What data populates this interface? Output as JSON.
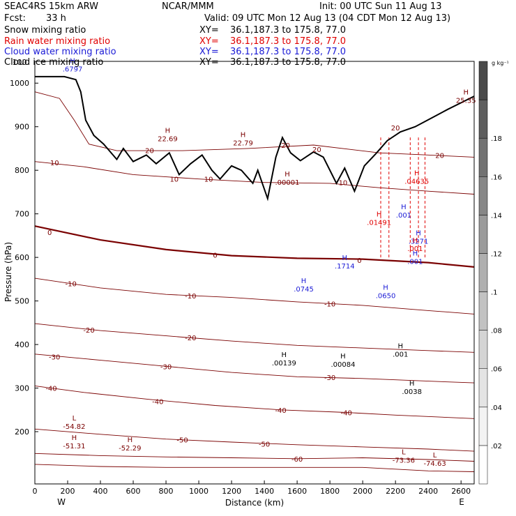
{
  "header": {
    "model": "SEAC4RS 15km ARW",
    "center": "NCAR/MMM",
    "init": "Init: 00 UTC Sun 11 Aug 13",
    "fcst_label": "Fcst:",
    "fcst_value": "33 h",
    "valid": "Valid: 09 UTC Mon 12 Aug 13 (04 CDT Mon 12 Aug 13)"
  },
  "fields": [
    {
      "name": "Snow mixing ratio",
      "xy_label": "XY=",
      "xy": "36.1,187.3 to 175.8, 77.0",
      "color": "#000000"
    },
    {
      "name": "Rain water mixing ratio",
      "xy_label": "XY=",
      "xy": "36.1,187.3 to 175.8, 77.0",
      "color": "#e00000"
    },
    {
      "name": "Cloud water mixing ratio",
      "xy_label": "XY=",
      "xy": "36.1,187.3 to 175.8, 77.0",
      "color": "#1a1ad6"
    },
    {
      "name": "Cloud ice mixing ratio",
      "xy_label": "XY=",
      "xy": "36.1,187.3 to 175.8, 77.0",
      "color": "#000000"
    }
  ],
  "chart_data": {
    "type": "line",
    "xlabel": "Distance (km)",
    "ylabel": "Pressure (hPa)",
    "xlim": [
      0,
      2680
    ],
    "ylim": [
      1050,
      80
    ],
    "x_ticks": [
      0,
      200,
      400,
      600,
      800,
      1000,
      1200,
      1400,
      1600,
      1800,
      2000,
      2200,
      2400,
      2600
    ],
    "y_ticks": [
      200,
      300,
      400,
      500,
      600,
      700,
      800,
      900,
      1000
    ],
    "y_top_label": "100",
    "endpoints": {
      "left": "W",
      "right": "E"
    },
    "colorbar": {
      "unit": "g kg⁻¹",
      "ticks": [
        ".02",
        ".04",
        ".06",
        ".08",
        ".1",
        ".12",
        ".14",
        ".16",
        ".18"
      ],
      "colors": [
        "#ffffff",
        "#f3f3f3",
        "#e4e4e4",
        "#d4d4d4",
        "#c2c2c2",
        "#afafaf",
        "#9b9b9b",
        "#878787",
        "#727272",
        "#5e5e5e",
        "#4a4a4a"
      ]
    },
    "temperature_isotherms": [
      {
        "label": "-70",
        "p": [
          [
            0,
            125
          ],
          [
            400,
            120
          ],
          [
            800,
            118
          ],
          [
            1200,
            118
          ],
          [
            1600,
            118
          ],
          [
            2000,
            118
          ],
          [
            2400,
            110
          ],
          [
            2680,
            108
          ]
        ]
      },
      {
        "label": "-60",
        "p": [
          [
            0,
            150
          ],
          [
            400,
            145
          ],
          [
            800,
            142
          ],
          [
            1200,
            140
          ],
          [
            1600,
            138
          ],
          [
            2000,
            140
          ],
          [
            2400,
            136
          ],
          [
            2680,
            132
          ]
        ]
      },
      {
        "label": "-50",
        "p": [
          [
            0,
            206
          ],
          [
            400,
            194
          ],
          [
            800,
            183
          ],
          [
            1200,
            176
          ],
          [
            1600,
            170
          ],
          [
            2000,
            165
          ],
          [
            2400,
            160
          ],
          [
            2680,
            155
          ]
        ]
      },
      {
        "label": "-40",
        "p": [
          [
            0,
            305
          ],
          [
            300,
            290
          ],
          [
            700,
            274
          ],
          [
            1100,
            260
          ],
          [
            1500,
            250
          ],
          [
            1900,
            244
          ],
          [
            2200,
            238
          ],
          [
            2680,
            230
          ]
        ]
      },
      {
        "label": "-30",
        "p": [
          [
            0,
            378
          ],
          [
            400,
            364
          ],
          [
            800,
            350
          ],
          [
            1200,
            336
          ],
          [
            1600,
            326
          ],
          [
            2000,
            322
          ],
          [
            2400,
            316
          ],
          [
            2680,
            312
          ]
        ]
      },
      {
        "label": "-20",
        "p": [
          [
            0,
            448
          ],
          [
            400,
            432
          ],
          [
            800,
            420
          ],
          [
            1200,
            408
          ],
          [
            1600,
            398
          ],
          [
            2000,
            392
          ],
          [
            2400,
            386
          ],
          [
            2680,
            382
          ]
        ]
      },
      {
        "label": "-10",
        "p": [
          [
            0,
            552
          ],
          [
            400,
            530
          ],
          [
            800,
            515
          ],
          [
            1200,
            508
          ],
          [
            1600,
            498
          ],
          [
            2000,
            490
          ],
          [
            2400,
            478
          ],
          [
            2680,
            470
          ]
        ]
      },
      {
        "label": "0",
        "p": [
          [
            0,
            672
          ],
          [
            400,
            640
          ],
          [
            800,
            618
          ],
          [
            1200,
            604
          ],
          [
            1600,
            598
          ],
          [
            2000,
            596
          ],
          [
            2400,
            588
          ],
          [
            2680,
            578
          ]
        ],
        "bold": true
      },
      {
        "label": "10",
        "p": [
          [
            0,
            820
          ],
          [
            300,
            808
          ],
          [
            600,
            790
          ],
          [
            1000,
            780
          ],
          [
            1400,
            772
          ],
          [
            1800,
            770
          ],
          [
            2100,
            760
          ],
          [
            2400,
            752
          ],
          [
            2680,
            745
          ]
        ]
      },
      {
        "label": "20",
        "p": [
          [
            0,
            980
          ],
          [
            150,
            965
          ],
          [
            240,
            915
          ],
          [
            330,
            860
          ],
          [
            500,
            845
          ],
          [
            900,
            845
          ],
          [
            1300,
            850
          ],
          [
            1700,
            858
          ],
          [
            2100,
            840
          ],
          [
            2400,
            835
          ],
          [
            2680,
            830
          ]
        ]
      }
    ],
    "terrain": [
      [
        0,
        1015
      ],
      [
        180,
        1015
      ],
      [
        250,
        1008
      ],
      [
        280,
        980
      ],
      [
        310,
        915
      ],
      [
        360,
        880
      ],
      [
        420,
        860
      ],
      [
        500,
        825
      ],
      [
        540,
        850
      ],
      [
        600,
        820
      ],
      [
        680,
        835
      ],
      [
        740,
        815
      ],
      [
        820,
        840
      ],
      [
        880,
        790
      ],
      [
        950,
        815
      ],
      [
        1020,
        835
      ],
      [
        1080,
        800
      ],
      [
        1130,
        780
      ],
      [
        1200,
        810
      ],
      [
        1260,
        800
      ],
      [
        1330,
        770
      ],
      [
        1360,
        800
      ],
      [
        1420,
        735
      ],
      [
        1470,
        830
      ],
      [
        1510,
        875
      ],
      [
        1560,
        840
      ],
      [
        1620,
        822
      ],
      [
        1700,
        842
      ],
      [
        1760,
        830
      ],
      [
        1840,
        770
      ],
      [
        1890,
        805
      ],
      [
        1950,
        752
      ],
      [
        2010,
        810
      ],
      [
        2080,
        838
      ],
      [
        2150,
        868
      ],
      [
        2230,
        888
      ],
      [
        2320,
        900
      ],
      [
        2420,
        920
      ],
      [
        2520,
        940
      ],
      [
        2600,
        955
      ],
      [
        2680,
        970
      ]
    ],
    "extrema": [
      {
        "kind": "L",
        "value": "-73.36",
        "x": 2250,
        "p": 132,
        "color": "#7a0000"
      },
      {
        "kind": "L",
        "value": "-74.63",
        "x": 2440,
        "p": 125,
        "color": "#7a0000"
      },
      {
        "kind": "H",
        "value": "-51.31",
        "x": 240,
        "p": 165,
        "color": "#7a0000"
      },
      {
        "kind": "H",
        "value": "-52.29",
        "x": 580,
        "p": 160,
        "color": "#7a0000"
      },
      {
        "kind": "L",
        "value": "-54.82",
        "x": 240,
        "p": 210,
        "color": "#7a0000"
      },
      {
        "kind": "H",
        "value": ".00139",
        "x": 1520,
        "p": 355,
        "color": "#000000"
      },
      {
        "kind": "H",
        "value": ".00084",
        "x": 1880,
        "p": 352,
        "color": "#000000"
      },
      {
        "kind": "H",
        "value": ".0038",
        "x": 2300,
        "p": 290,
        "color": "#000000"
      },
      {
        "kind": "H",
        "value": ".001",
        "x": 2230,
        "p": 375,
        "color": "#000000"
      },
      {
        "kind": "H",
        "value": ".0745",
        "x": 1640,
        "p": 525,
        "color": "#1a1ad6"
      },
      {
        "kind": "H",
        "value": ".0650",
        "x": 2140,
        "p": 510,
        "color": "#1a1ad6"
      },
      {
        "kind": "H",
        "value": ".1714",
        "x": 1890,
        "p": 578,
        "color": "#1a1ad6"
      },
      {
        "kind": "H",
        "value": ".001",
        "x": 2320,
        "p": 588,
        "color": "#1a1ad6"
      },
      {
        "kind": "H",
        "value": ".3271",
        "x": 2340,
        "p": 635,
        "color": "#1a1ad6"
      },
      {
        "kind": "H",
        "value": ".001",
        "x": 2250,
        "p": 695,
        "color": "#1a1ad6"
      },
      {
        "kind": "H",
        "value": ".001",
        "x": 2320,
        "p": 618,
        "color": "#e00000"
      },
      {
        "kind": "H",
        "value": ".01491",
        "x": 2100,
        "p": 678,
        "color": "#e00000"
      },
      {
        "kind": "H",
        "value": ".04635",
        "x": 2330,
        "p": 772,
        "color": "#e00000"
      },
      {
        "kind": "H",
        "value": ".00001",
        "x": 1540,
        "p": 770,
        "color": "#7a0000"
      },
      {
        "kind": "H",
        "value": "22.69",
        "x": 810,
        "p": 870,
        "color": "#7a0000"
      },
      {
        "kind": "H",
        "value": "22.79",
        "x": 1270,
        "p": 860,
        "color": "#7a0000"
      },
      {
        "kind": "H",
        "value": "25.35",
        "x": 2630,
        "p": 958,
        "color": "#7a0000"
      },
      {
        "kind": "H",
        "value": ".6797",
        "x": 230,
        "p": 1030,
        "color": "#1a1ad6"
      }
    ],
    "contour_labels": [
      {
        "text": "-60",
        "x": 1600,
        "p": 138
      },
      {
        "text": "-50",
        "x": 1400,
        "p": 172
      },
      {
        "text": "-50",
        "x": 900,
        "p": 182
      },
      {
        "text": "-40",
        "x": 1500,
        "p": 250
      },
      {
        "text": "-40",
        "x": 1900,
        "p": 244
      },
      {
        "text": "-40",
        "x": 750,
        "p": 270
      },
      {
        "text": "-40",
        "x": 100,
        "p": 300
      },
      {
        "text": "-30",
        "x": 1800,
        "p": 325
      },
      {
        "text": "-30",
        "x": 800,
        "p": 350
      },
      {
        "text": "-30",
        "x": 120,
        "p": 372
      },
      {
        "text": "-20",
        "x": 950,
        "p": 416
      },
      {
        "text": "-20",
        "x": 330,
        "p": 434
      },
      {
        "text": "-10",
        "x": 1800,
        "p": 494
      },
      {
        "text": "-10",
        "x": 950,
        "p": 512
      },
      {
        "text": "-10",
        "x": 220,
        "p": 540
      },
      {
        "text": "0",
        "x": 1100,
        "p": 606
      },
      {
        "text": "0",
        "x": 1980,
        "p": 594
      },
      {
        "text": "0",
        "x": 90,
        "p": 658
      },
      {
        "text": "10",
        "x": 850,
        "p": 780
      },
      {
        "text": "10",
        "x": 1060,
        "p": 780
      },
      {
        "text": "10",
        "x": 1880,
        "p": 772
      },
      {
        "text": "10",
        "x": 120,
        "p": 818
      },
      {
        "text": "20",
        "x": 700,
        "p": 846
      },
      {
        "text": "20",
        "x": 1530,
        "p": 858
      },
      {
        "text": "20",
        "x": 1720,
        "p": 848
      },
      {
        "text": "20",
        "x": 2200,
        "p": 898
      },
      {
        "text": "20",
        "x": 2470,
        "p": 835
      }
    ],
    "rain_columns": [
      2110,
      2160,
      2290,
      2340,
      2380
    ],
    "shaded_columns": [
      {
        "x": 2130,
        "p0": 450,
        "p1": 600,
        "level": 7
      },
      {
        "x": 2340,
        "p0": 500,
        "p1": 600,
        "level": 9
      },
      {
        "x": 2230,
        "p0": 340,
        "p1": 385,
        "level": 4
      },
      {
        "x": 2340,
        "p0": 260,
        "p1": 315,
        "level": 5
      }
    ]
  }
}
